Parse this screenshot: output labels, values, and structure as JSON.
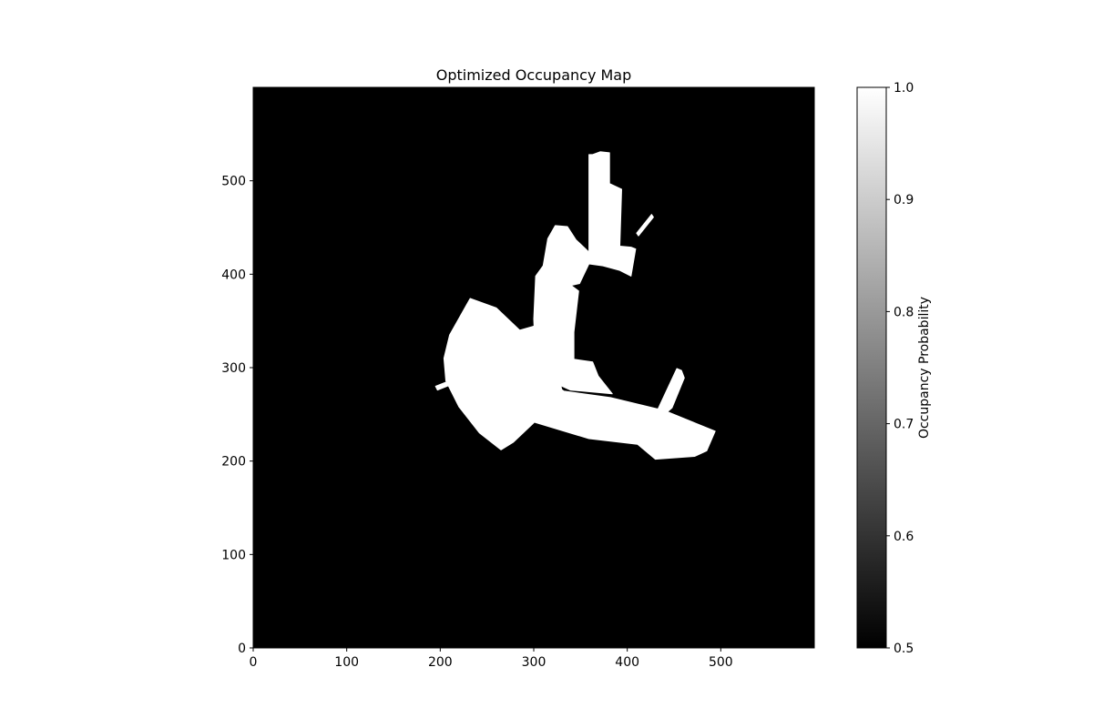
{
  "chart_data": {
    "type": "heatmap",
    "title": "Optimized Occupancy Map",
    "xlabel": "",
    "ylabel": "",
    "xlim": [
      0,
      600
    ],
    "ylim": [
      0,
      600
    ],
    "x_ticks": [
      0,
      100,
      200,
      300,
      400,
      500
    ],
    "y_ticks": [
      0,
      100,
      200,
      300,
      400,
      500
    ],
    "colormap": "gray",
    "background_value": 0.5,
    "free_space_value": 1.0,
    "colorbar": {
      "label": "Occupancy Probability",
      "range": [
        0.5,
        1.0
      ],
      "ticks": [
        0.5,
        0.6,
        0.7,
        0.8,
        0.9,
        1.0
      ]
    },
    "free_regions": [
      {
        "name": "north-corridor",
        "polygon": [
          [
            363,
            528
          ],
          [
            371,
            531
          ],
          [
            381,
            530
          ],
          [
            381,
            497
          ],
          [
            394,
            491
          ],
          [
            392,
            430
          ],
          [
            404,
            429
          ],
          [
            409,
            427
          ],
          [
            404,
            398
          ],
          [
            392,
            404
          ],
          [
            374,
            409
          ],
          [
            359,
            411
          ],
          [
            359,
            528
          ]
        ]
      },
      {
        "name": "central-corridor",
        "polygon": [
          [
            323,
            452
          ],
          [
            336,
            451
          ],
          [
            345,
            437
          ],
          [
            365,
            418
          ],
          [
            359,
            411
          ],
          [
            349,
            390
          ],
          [
            340,
            388
          ],
          [
            348,
            382
          ],
          [
            343,
            338
          ],
          [
            343,
            309
          ],
          [
            363,
            306
          ],
          [
            369,
            291
          ],
          [
            384,
            272
          ],
          [
            339,
            276
          ],
          [
            309,
            290
          ],
          [
            302,
            302
          ],
          [
            300,
            352
          ],
          [
            302,
            398
          ],
          [
            310,
            409
          ],
          [
            315,
            438
          ]
        ]
      },
      {
        "name": "central-hub",
        "polygon": [
          [
            232,
            374
          ],
          [
            260,
            364
          ],
          [
            285,
            340
          ],
          [
            302,
            345
          ],
          [
            320,
            321
          ],
          [
            331,
            272
          ],
          [
            299,
            240
          ],
          [
            278,
            220
          ],
          [
            265,
            212
          ],
          [
            242,
            230
          ],
          [
            220,
            258
          ],
          [
            206,
            286
          ],
          [
            204,
            310
          ],
          [
            210,
            335
          ]
        ]
      },
      {
        "name": "southeast-corridor",
        "polygon": [
          [
            300,
            298
          ],
          [
            332,
            275
          ],
          [
            382,
            268
          ],
          [
            440,
            254
          ],
          [
            494,
            232
          ],
          [
            485,
            211
          ],
          [
            472,
            205
          ],
          [
            430,
            202
          ],
          [
            411,
            218
          ],
          [
            359,
            224
          ],
          [
            329,
            233
          ],
          [
            296,
            243
          ],
          [
            282,
            266
          ]
        ]
      },
      {
        "name": "east-spur",
        "polygon": [
          [
            433,
            256
          ],
          [
            453,
            299
          ],
          [
            458,
            297
          ],
          [
            461,
            289
          ],
          [
            448,
            257
          ],
          [
            440,
            250
          ]
        ]
      },
      {
        "name": "north-east-ray",
        "polygon": [
          [
            410,
            444
          ],
          [
            426,
            464
          ],
          [
            428,
            461
          ],
          [
            412,
            441
          ]
        ]
      },
      {
        "name": "west-ray",
        "polygon": [
          [
            195,
            280
          ],
          [
            230,
            294
          ],
          [
            232,
            290
          ],
          [
            197,
            276
          ]
        ]
      }
    ]
  }
}
